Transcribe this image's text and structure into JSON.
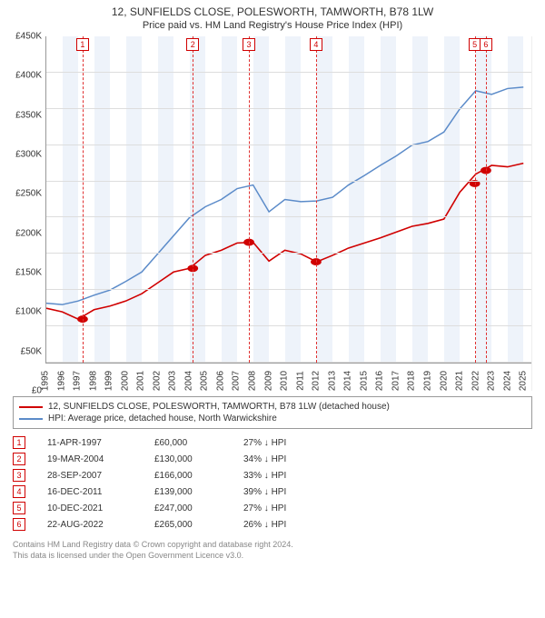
{
  "title": "12, SUNFIELDS CLOSE, POLESWORTH, TAMWORTH, B78 1LW",
  "subtitle": "Price paid vs. HM Land Registry's House Price Index (HPI)",
  "chart": {
    "type": "line",
    "background_color": "#ffffff",
    "grid_color": "#dddddd",
    "shade_color": "#eef3fa",
    "marker_line_color": "#e03030",
    "x_min": 1995,
    "x_max": 2025.5,
    "y_min": 0,
    "y_max": 450000,
    "y_ticks": [
      0,
      50000,
      100000,
      150000,
      200000,
      250000,
      300000,
      350000,
      400000,
      450000
    ],
    "y_tick_labels": [
      "£0",
      "£50K",
      "£100K",
      "£150K",
      "£200K",
      "£250K",
      "£300K",
      "£350K",
      "£400K",
      "£450K"
    ],
    "x_ticks": [
      1995,
      1996,
      1997,
      1998,
      1999,
      2000,
      2001,
      2002,
      2003,
      2004,
      2005,
      2006,
      2007,
      2008,
      2009,
      2010,
      2011,
      2012,
      2013,
      2014,
      2015,
      2016,
      2017,
      2018,
      2019,
      2020,
      2021,
      2022,
      2023,
      2024,
      2025
    ],
    "series": [
      {
        "id": "property",
        "label": "12, SUNFIELDS CLOSE, POLESWORTH, TAMWORTH, B78 1LW (detached house)",
        "color": "#d00000",
        "line_width": 1.6,
        "points": [
          [
            1995,
            75000
          ],
          [
            1996,
            70000
          ],
          [
            1997,
            60000
          ],
          [
            1998,
            73000
          ],
          [
            1999,
            78000
          ],
          [
            2000,
            85000
          ],
          [
            2001,
            95000
          ],
          [
            2002,
            110000
          ],
          [
            2003,
            125000
          ],
          [
            2004,
            130000
          ],
          [
            2005,
            148000
          ],
          [
            2006,
            155000
          ],
          [
            2007,
            165000
          ],
          [
            2008,
            166000
          ],
          [
            2009,
            140000
          ],
          [
            2010,
            155000
          ],
          [
            2011,
            150000
          ],
          [
            2012,
            139000
          ],
          [
            2013,
            148000
          ],
          [
            2014,
            158000
          ],
          [
            2015,
            165000
          ],
          [
            2016,
            172000
          ],
          [
            2017,
            180000
          ],
          [
            2018,
            188000
          ],
          [
            2019,
            192000
          ],
          [
            2020,
            198000
          ],
          [
            2021,
            235000
          ],
          [
            2022,
            260000
          ],
          [
            2023,
            272000
          ],
          [
            2024,
            270000
          ],
          [
            2025,
            275000
          ]
        ]
      },
      {
        "id": "hpi",
        "label": "HPI: Average price, detached house, North Warwickshire",
        "color": "#5b8bc9",
        "line_width": 1.5,
        "points": [
          [
            1995,
            82000
          ],
          [
            1996,
            80000
          ],
          [
            1997,
            85000
          ],
          [
            1998,
            93000
          ],
          [
            1999,
            100000
          ],
          [
            2000,
            112000
          ],
          [
            2001,
            125000
          ],
          [
            2002,
            150000
          ],
          [
            2003,
            175000
          ],
          [
            2004,
            200000
          ],
          [
            2005,
            215000
          ],
          [
            2006,
            225000
          ],
          [
            2007,
            240000
          ],
          [
            2008,
            245000
          ],
          [
            2009,
            208000
          ],
          [
            2010,
            225000
          ],
          [
            2011,
            222000
          ],
          [
            2012,
            223000
          ],
          [
            2013,
            228000
          ],
          [
            2014,
            245000
          ],
          [
            2015,
            258000
          ],
          [
            2016,
            272000
          ],
          [
            2017,
            285000
          ],
          [
            2018,
            300000
          ],
          [
            2019,
            305000
          ],
          [
            2020,
            318000
          ],
          [
            2021,
            350000
          ],
          [
            2022,
            375000
          ],
          [
            2023,
            370000
          ],
          [
            2024,
            378000
          ],
          [
            2025,
            380000
          ]
        ]
      }
    ],
    "sale_markers": [
      {
        "n": "1",
        "year": 1997.28,
        "value": 60000
      },
      {
        "n": "2",
        "year": 2004.21,
        "value": 130000
      },
      {
        "n": "3",
        "year": 2007.74,
        "value": 166000
      },
      {
        "n": "4",
        "year": 2011.96,
        "value": 139000
      },
      {
        "n": "5",
        "year": 2021.94,
        "value": 247000
      },
      {
        "n": "6",
        "year": 2022.64,
        "value": 265000
      }
    ]
  },
  "legend": {
    "rows": [
      {
        "color": "#d00000",
        "label_path": "chart.series.0.label"
      },
      {
        "color": "#5b8bc9",
        "label_path": "chart.series.1.label"
      }
    ]
  },
  "sales_table": [
    {
      "n": "1",
      "date": "11-APR-1997",
      "price": "£60,000",
      "delta": "27% ↓ HPI"
    },
    {
      "n": "2",
      "date": "19-MAR-2004",
      "price": "£130,000",
      "delta": "34% ↓ HPI"
    },
    {
      "n": "3",
      "date": "28-SEP-2007",
      "price": "£166,000",
      "delta": "33% ↓ HPI"
    },
    {
      "n": "4",
      "date": "16-DEC-2011",
      "price": "£139,000",
      "delta": "39% ↓ HPI"
    },
    {
      "n": "5",
      "date": "10-DEC-2021",
      "price": "£247,000",
      "delta": "27% ↓ HPI"
    },
    {
      "n": "6",
      "date": "22-AUG-2022",
      "price": "£265,000",
      "delta": "26% ↓ HPI"
    }
  ],
  "footer": {
    "line1": "Contains HM Land Registry data © Crown copyright and database right 2024.",
    "line2": "This data is licensed under the Open Government Licence v3.0."
  }
}
